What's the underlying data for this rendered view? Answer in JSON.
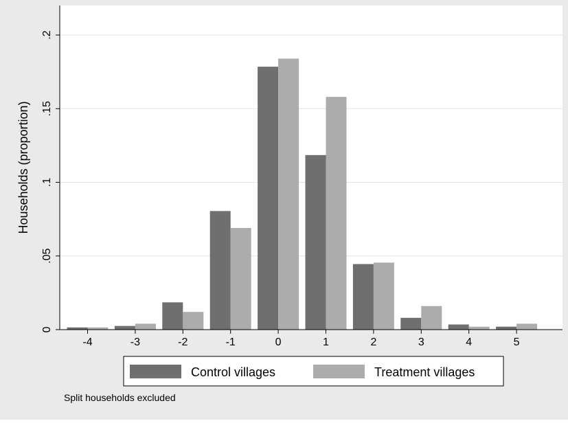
{
  "chart_data": {
    "type": "bar",
    "title": "",
    "xlabel": "",
    "ylabel": "Households (proportion)",
    "categories": [
      "-4",
      "-3",
      "-2",
      "-1",
      "0",
      "1",
      "2",
      "3",
      "4",
      "5"
    ],
    "series": [
      {
        "name": "Control villages",
        "color": "#6f6f6f",
        "values": [
          0.0015,
          0.0025,
          0.0185,
          0.0805,
          0.1785,
          0.1185,
          0.0445,
          0.008,
          0.0035,
          0.002
        ]
      },
      {
        "name": "Treatment villages",
        "color": "#acacac",
        "values": [
          0.0015,
          0.004,
          0.012,
          0.069,
          0.184,
          0.158,
          0.0455,
          0.016,
          0.002,
          0.004
        ]
      }
    ],
    "ylim": [
      0,
      0.2
    ],
    "yticks": [
      0,
      0.05,
      0.1,
      0.15,
      0.2
    ],
    "ytick_labels": [
      "0",
      ".05",
      ".1",
      ".15",
      ".2"
    ],
    "grid": true,
    "legend_position": "bottom",
    "note": "Split households excluded"
  },
  "colors": {
    "background": "#eaeaea",
    "plot_background": "#ffffff",
    "grid": "#e3e3e3"
  }
}
